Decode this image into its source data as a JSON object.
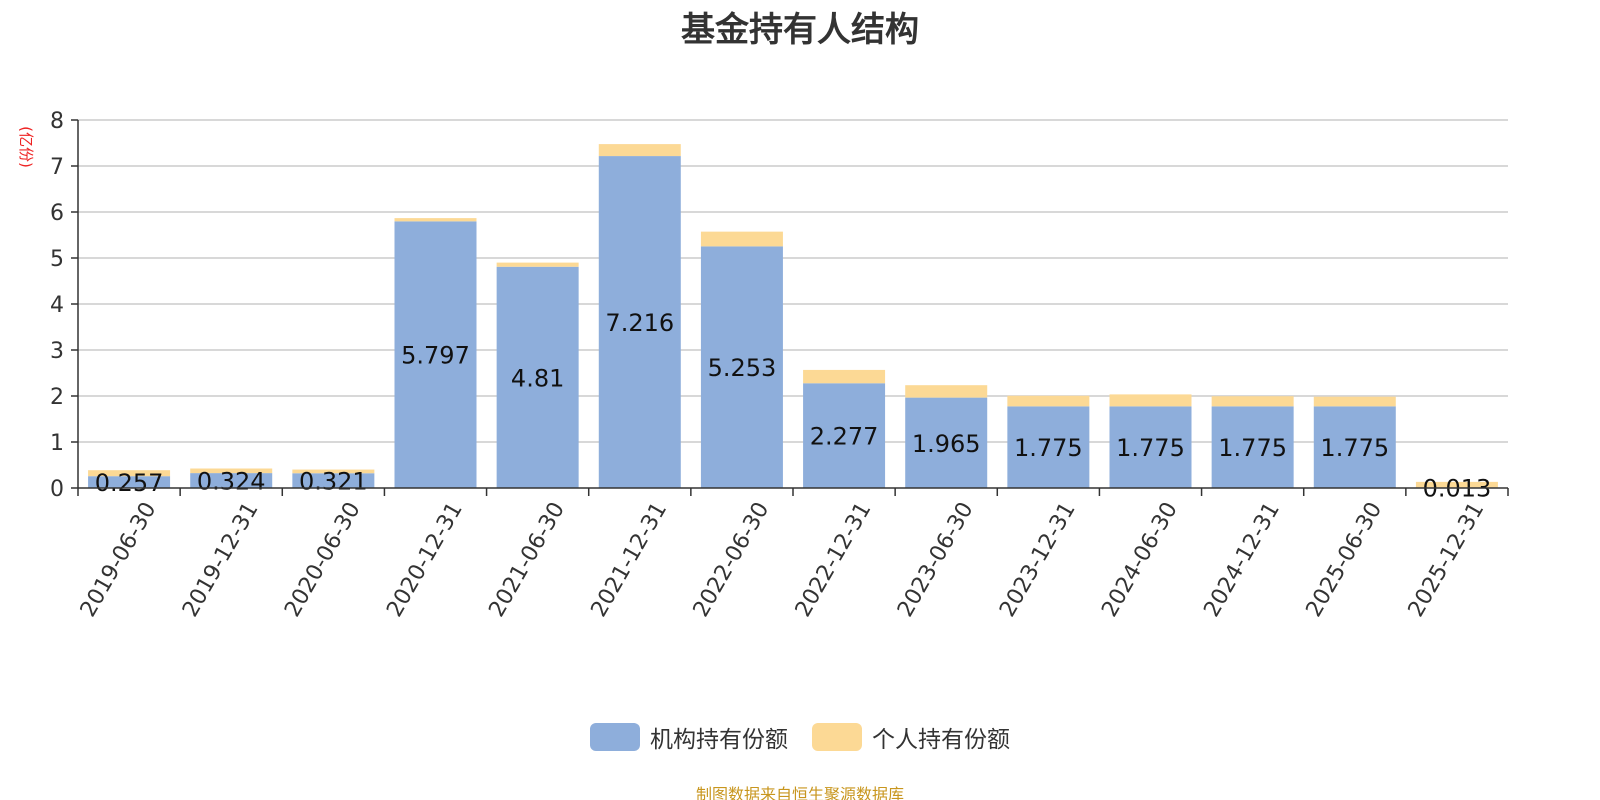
{
  "chart_data": {
    "type": "bar",
    "stacked": true,
    "title": "基金持有人结构",
    "ylabel": "(亿份)",
    "ylim": [
      0,
      8
    ],
    "yticks": [
      0,
      1,
      2,
      3,
      4,
      5,
      6,
      7,
      8
    ],
    "grid": true,
    "legend_position": "bottom-center",
    "categories": [
      "2019-06-30",
      "2019-12-31",
      "2020-06-30",
      "2020-12-31",
      "2021-06-30",
      "2021-12-31",
      "2022-06-30",
      "2022-12-31",
      "2023-06-30",
      "2023-12-31",
      "2024-06-30",
      "2024-12-31",
      "2025-06-30",
      "2025-12-31"
    ],
    "series": [
      {
        "name": "机构持有份额",
        "color": "#8eaedb",
        "values": [
          0.257,
          0.324,
          0.321,
          5.797,
          4.81,
          7.216,
          5.253,
          2.277,
          1.965,
          1.775,
          1.775,
          1.775,
          1.775,
          0.013
        ],
        "labels": [
          "0.257",
          "0.324",
          "0.321",
          "5.797",
          "4.81",
          "7.216",
          "5.253",
          "2.277",
          "1.965",
          "1.775",
          "1.775",
          "1.775",
          "1.775",
          "0.013"
        ]
      },
      {
        "name": "个人持有份额",
        "color": "#fcd995",
        "values": [
          0.13,
          0.1,
          0.08,
          0.07,
          0.09,
          0.26,
          0.32,
          0.29,
          0.27,
          0.23,
          0.26,
          0.22,
          0.21,
          0.12
        ]
      }
    ],
    "source": "制图数据来自恒生聚源数据库"
  }
}
